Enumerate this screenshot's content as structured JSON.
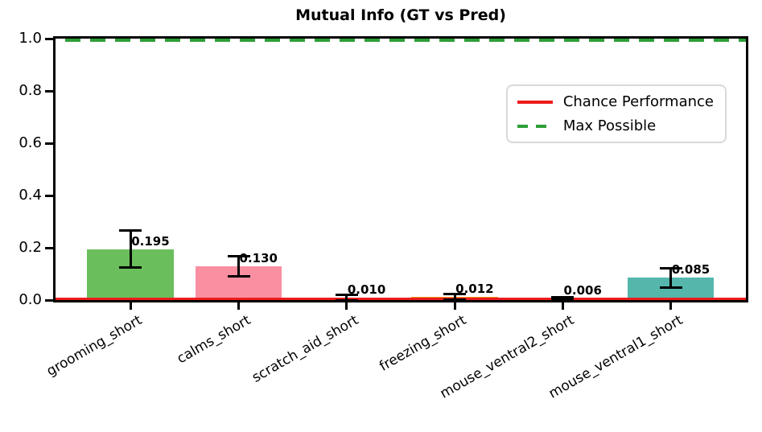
{
  "title": "Mutual Info (GT vs Pred)",
  "legend": {
    "items": [
      {
        "label": "Chance Performance",
        "color": "#ed1c1c",
        "style": "solid"
      },
      {
        "label": "Max Possible",
        "color": "#2e9e38",
        "style": "dashed"
      }
    ],
    "position": "upper right"
  },
  "chart_data": {
    "type": "bar",
    "title": "Mutual Info (GT vs Pred)",
    "xlabel": "",
    "ylabel": "",
    "categories": [
      "grooming_short",
      "calms_short",
      "scratch_aid_short",
      "freezing_short",
      "mouse_ventral2_short",
      "mouse_ventral1_short"
    ],
    "values": [
      0.195,
      0.13,
      0.01,
      0.012,
      0.006,
      0.085
    ],
    "errors": [
      0.07,
      0.038,
      0.01,
      0.01,
      0.005,
      0.038
    ],
    "bar_labels": [
      "0.195",
      "0.130",
      "0.010",
      "0.012",
      "0.006",
      "0.085"
    ],
    "bar_colors": [
      "#6abf5c",
      "#fa8fa2",
      "#ff74ae",
      "#f5921e",
      "#ed1c1c",
      "#55b7ac"
    ],
    "ylim": [
      0.0,
      1.0
    ],
    "yticks": [
      0.0,
      0.2,
      0.4,
      0.6,
      0.8,
      1.0
    ],
    "ytick_labels": [
      "0.0",
      "0.2",
      "0.4",
      "0.6",
      "0.8",
      "1.0"
    ],
    "xtick_rotation_deg": 30,
    "grid": false,
    "hlines": [
      {
        "name": "chance_performance",
        "y": 0.005,
        "color": "#ed1c1c",
        "style": "solid"
      },
      {
        "name": "max_possible",
        "y": 1.0,
        "color": "#2e9e38",
        "style": "dashed"
      }
    ],
    "legend_position": "upper right"
  }
}
